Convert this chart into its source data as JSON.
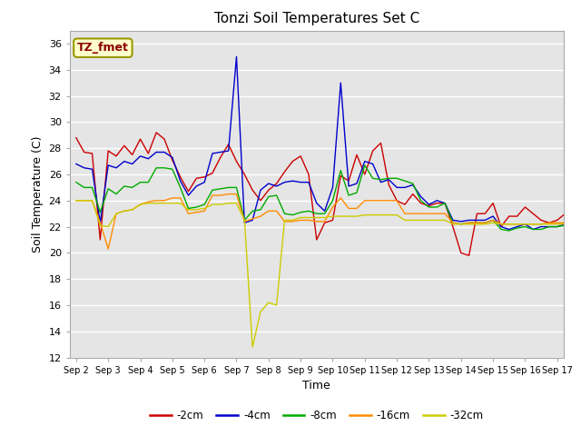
{
  "title": "Tonzi Soil Temperatures Set C",
  "xlabel": "Time",
  "ylabel": "Soil Temperature (C)",
  "annotation": "TZ_fmet",
  "ylim": [
    12,
    37
  ],
  "yticks": [
    12,
    14,
    16,
    18,
    20,
    22,
    24,
    26,
    28,
    30,
    32,
    34,
    36
  ],
  "x_labels": [
    "Sep 2",
    "Sep 3",
    "Sep 4",
    "Sep 5",
    "Sep 6",
    "Sep 7",
    "Sep 8",
    "Sep 9",
    "Sep 10",
    "Sep 11",
    "Sep 12",
    "Sep 13",
    "Sep 14",
    "Sep 15",
    "Sep 16",
    "Sep 17"
  ],
  "n_days": 16,
  "series": {
    "-2cm": {
      "color": "#cc0000",
      "values": [
        28.8,
        27.7,
        27.6,
        21.0,
        27.8,
        27.4,
        28.2,
        27.5,
        28.7,
        27.6,
        29.2,
        28.7,
        27.1,
        25.8,
        24.7,
        25.7,
        25.8,
        26.1,
        27.3,
        28.3,
        27.0,
        26.0,
        24.8,
        24.0,
        24.8,
        25.3,
        26.2,
        27.0,
        27.4,
        26.0,
        21.0,
        22.3,
        22.5,
        25.9,
        25.5,
        27.5,
        26.0,
        27.8,
        28.4,
        25.2,
        24.0,
        23.7,
        24.5,
        23.8,
        23.6,
        23.8,
        23.8,
        22.0,
        20.0,
        19.8,
        23.0,
        23.0,
        23.8,
        22.0,
        22.8,
        22.8,
        23.5,
        23.0,
        22.5,
        22.3,
        22.5,
        23.0,
        23.3,
        23.0
      ]
    },
    "-4cm": {
      "color": "#0000cc",
      "values": [
        26.8,
        26.5,
        26.4,
        22.3,
        26.7,
        26.5,
        27.0,
        26.8,
        27.4,
        27.2,
        27.7,
        27.7,
        27.3,
        25.5,
        24.4,
        25.1,
        25.4,
        27.6,
        27.7,
        27.8,
        35.0,
        22.3,
        22.5,
        24.8,
        25.3,
        25.1,
        25.4,
        25.5,
        25.4,
        25.4,
        23.8,
        23.2,
        25.0,
        33.0,
        25.1,
        25.3,
        27.0,
        26.8,
        25.4,
        25.6,
        25.0,
        25.0,
        25.2,
        24.3,
        23.7,
        24.0,
        23.8,
        22.5,
        22.4,
        22.5,
        22.5,
        22.5,
        22.8,
        22.0,
        21.8,
        22.0,
        22.2,
        21.8,
        22.0,
        22.0,
        22.0,
        22.2,
        23.0,
        23.0
      ]
    },
    "-8cm": {
      "color": "#00aa00",
      "values": [
        25.4,
        25.0,
        25.0,
        23.1,
        24.9,
        24.5,
        25.1,
        25.0,
        25.4,
        25.4,
        26.5,
        26.5,
        26.4,
        25.0,
        23.4,
        23.5,
        23.7,
        24.8,
        24.9,
        25.0,
        25.0,
        22.5,
        23.2,
        23.3,
        24.3,
        24.4,
        23.0,
        22.9,
        23.1,
        23.2,
        23.0,
        23.0,
        24.0,
        26.3,
        24.4,
        24.6,
        26.7,
        25.7,
        25.6,
        25.7,
        25.7,
        25.5,
        25.3,
        24.0,
        23.5,
        23.5,
        23.8,
        22.3,
        22.2,
        22.3,
        22.3,
        22.3,
        22.5,
        21.8,
        21.7,
        21.9,
        22.0,
        21.8,
        21.8,
        22.0,
        22.0,
        22.1,
        22.3,
        22.2
      ]
    },
    "-16cm": {
      "color": "#ff8c00",
      "values": [
        24.0,
        24.0,
        24.0,
        22.3,
        20.3,
        23.0,
        23.2,
        23.3,
        23.7,
        23.9,
        24.0,
        24.0,
        24.2,
        24.2,
        23.0,
        23.1,
        23.2,
        24.4,
        24.4,
        24.5,
        24.5,
        22.4,
        22.6,
        22.8,
        23.2,
        23.2,
        22.4,
        22.4,
        22.5,
        22.5,
        22.4,
        22.4,
        23.5,
        24.2,
        23.4,
        23.4,
        24.0,
        24.0,
        24.0,
        24.0,
        24.0,
        23.0,
        23.0,
        23.0,
        23.0,
        23.0,
        23.0,
        22.3,
        22.2,
        22.3,
        22.3,
        22.3,
        22.5,
        22.2,
        22.2,
        22.2,
        22.2,
        22.2,
        22.2,
        22.3,
        22.3,
        22.3,
        22.3,
        22.3
      ]
    },
    "-32cm": {
      "color": "#cccc00",
      "values": [
        24.0,
        24.0,
        24.0,
        22.1,
        22.0,
        23.0,
        23.2,
        23.3,
        23.7,
        23.8,
        23.8,
        23.8,
        23.8,
        23.8,
        23.3,
        23.3,
        23.4,
        23.7,
        23.7,
        23.8,
        23.8,
        22.5,
        12.8,
        15.5,
        16.2,
        16.0,
        22.5,
        22.5,
        22.7,
        22.7,
        22.7,
        22.7,
        22.8,
        22.8,
        22.8,
        22.8,
        22.9,
        22.9,
        22.9,
        22.9,
        22.9,
        22.5,
        22.5,
        22.5,
        22.5,
        22.5,
        22.5,
        22.2,
        22.2,
        22.2,
        22.2,
        22.2,
        22.3,
        22.2,
        22.2,
        22.2,
        22.2,
        22.2,
        22.2,
        22.2,
        22.2,
        22.2,
        22.2,
        22.2
      ]
    }
  },
  "n_points": 64,
  "background_color": "#e5e5e5",
  "plot_bg_color": "#e5e5e5",
  "legend_items": [
    "-2cm",
    "-4cm",
    "-8cm",
    "-16cm",
    "-32cm"
  ],
  "legend_colors": [
    "#cc0000",
    "#0000cc",
    "#00aa00",
    "#ff8c00",
    "#cccc00"
  ]
}
